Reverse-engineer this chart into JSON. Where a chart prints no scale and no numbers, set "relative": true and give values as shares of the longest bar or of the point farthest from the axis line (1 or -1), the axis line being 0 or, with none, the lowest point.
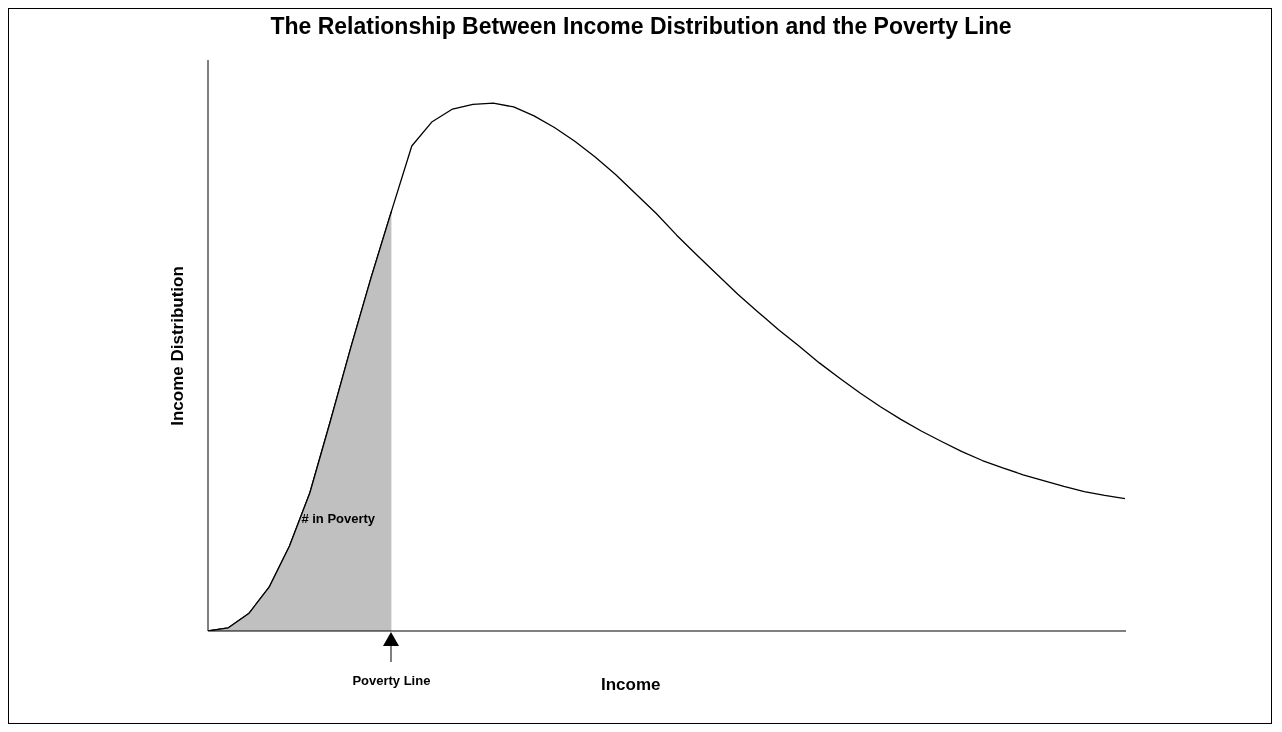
{
  "chart_data": {
    "type": "area",
    "title": "The Relationship Between Income Distribution and the Poverty Line",
    "xlabel": "Income",
    "ylabel": "Income Distribution",
    "relative": true,
    "categories": [
      null,
      null,
      null,
      null,
      null,
      null,
      null,
      null,
      null,
      null,
      null,
      null,
      null,
      null,
      null,
      null,
      null,
      null,
      null,
      null,
      null,
      null,
      null,
      null,
      null,
      null,
      null,
      null,
      null,
      null,
      null,
      null,
      null,
      null,
      null,
      null,
      null,
      null,
      null,
      null,
      null,
      null,
      null,
      null,
      null,
      null
    ],
    "series": [
      {
        "color": "#ffffff",
        "values": [
          0,
          0.006,
          0.033,
          0.083,
          0.161,
          0.262,
          0.397,
          0.536,
          0.669,
          0.795,
          0.919,
          0.965,
          0.989,
          0.998,
          1,
          0.993,
          0.976,
          0.954,
          0.928,
          0.898,
          0.865,
          0.828,
          0.791,
          0.75,
          0.712,
          0.675,
          0.638,
          0.604,
          0.571,
          0.54,
          0.508,
          0.479,
          0.451,
          0.425,
          0.401,
          0.379,
          0.359,
          0.34,
          0.323,
          0.309,
          0.296,
          0.285,
          0.274,
          0.264,
          0.257,
          0.251
        ]
      },
      {
        "color": "#c0c0c0",
        "values": [
          0,
          0.006,
          0.033,
          0.083,
          0.161,
          0.262,
          0.397,
          0.536,
          0.669,
          0.795,
          null,
          null,
          null,
          null,
          null,
          null,
          null,
          null,
          null,
          null,
          null,
          null,
          null,
          null,
          null,
          null,
          null,
          null,
          null,
          null,
          null,
          null,
          null,
          null,
          null,
          null,
          null,
          null,
          null,
          null,
          null,
          null,
          null,
          null,
          null,
          null
        ]
      }
    ],
    "annotations": [
      "# in Poverty",
      "Poverty Line"
    ],
    "grid": false,
    "legend": false,
    "marker": "none",
    "line_style": "solid"
  }
}
